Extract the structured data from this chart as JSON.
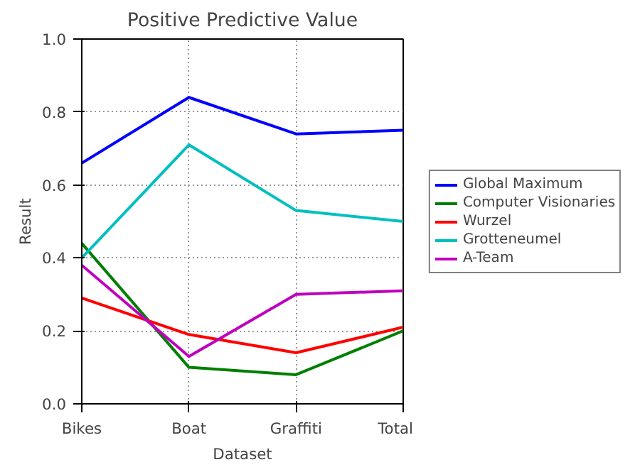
{
  "chart_data": {
    "type": "line",
    "title": "Positive Predictive Value",
    "xlabel": "Dataset",
    "ylabel": "Result",
    "categories": [
      "Bikes",
      "Boat",
      "Graffiti",
      "Total"
    ],
    "series": [
      {
        "name": "Global Maximum",
        "color": "#0000ff",
        "values": [
          0.66,
          0.84,
          0.74,
          0.75
        ]
      },
      {
        "name": "Computer Visionaries",
        "color": "#007f00",
        "values": [
          0.44,
          0.1,
          0.08,
          0.2
        ]
      },
      {
        "name": "Wurzel",
        "color": "#ff0000",
        "values": [
          0.29,
          0.19,
          0.14,
          0.21
        ]
      },
      {
        "name": "Grotteneumel",
        "color": "#00bfbf",
        "values": [
          0.4,
          0.71,
          0.53,
          0.5
        ]
      },
      {
        "name": "A-Team",
        "color": "#bf00bf",
        "values": [
          0.38,
          0.13,
          0.3,
          0.31
        ]
      }
    ],
    "ylim": [
      0,
      1
    ],
    "yticks": [
      {
        "value": 0,
        "label": "0.0"
      },
      {
        "value": 0.2,
        "label": "0.2"
      },
      {
        "value": 0.4,
        "label": "0.4"
      },
      {
        "value": 0.6,
        "label": "0.6"
      },
      {
        "value": 0.8,
        "label": "0.8"
      },
      {
        "value": 1,
        "label": "1.0"
      }
    ],
    "grid": true,
    "legend": "right",
    "marker": "none",
    "line_style": "solid"
  }
}
